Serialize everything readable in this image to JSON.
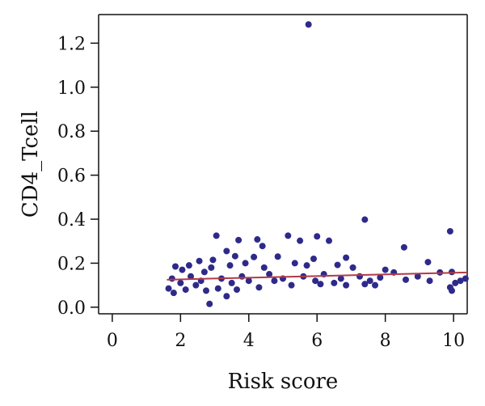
{
  "chart_data": {
    "type": "scatter",
    "xlabel": "Risk score",
    "ylabel": "CD4_Tcell",
    "xlim": [
      -0.4,
      10.4
    ],
    "ylim": [
      -0.03,
      1.33
    ],
    "xticks": [
      0,
      2,
      4,
      6,
      8,
      10
    ],
    "yticks": [
      0.0,
      0.2,
      0.4,
      0.6,
      0.8,
      1.0,
      1.2
    ],
    "ytick_labels": [
      "0.0",
      "0.2",
      "0.4",
      "0.6",
      "0.8",
      "1.0",
      "1.2"
    ],
    "grid": false,
    "legend": "none",
    "point_color": "#2e2a8a",
    "fit_line_color": "#b23a48",
    "fit_line": {
      "x": [
        1.6,
        10.4
      ],
      "y": [
        0.125,
        0.158
      ]
    },
    "points": [
      [
        5.75,
        1.285
      ],
      [
        7.4,
        0.398
      ],
      [
        9.9,
        0.345
      ],
      [
        3.05,
        0.325
      ],
      [
        5.15,
        0.325
      ],
      [
        6.0,
        0.322
      ],
      [
        4.25,
        0.308
      ],
      [
        3.7,
        0.305
      ],
      [
        6.35,
        0.302
      ],
      [
        5.5,
        0.302
      ],
      [
        8.55,
        0.272
      ],
      [
        4.4,
        0.278
      ],
      [
        3.35,
        0.255
      ],
      [
        3.6,
        0.232
      ],
      [
        4.85,
        0.23
      ],
      [
        6.85,
        0.225
      ],
      [
        5.9,
        0.22
      ],
      [
        9.25,
        0.205
      ],
      [
        2.55,
        0.21
      ],
      [
        2.95,
        0.215
      ],
      [
        4.15,
        0.228
      ],
      [
        5.35,
        0.2
      ],
      [
        5.7,
        0.19
      ],
      [
        6.6,
        0.192
      ],
      [
        7.05,
        0.18
      ],
      [
        8.0,
        0.17
      ],
      [
        8.25,
        0.158
      ],
      [
        9.6,
        0.158
      ],
      [
        9.95,
        0.16
      ],
      [
        10.35,
        0.13
      ],
      [
        10.05,
        0.11
      ],
      [
        10.2,
        0.12
      ],
      [
        9.9,
        0.09
      ],
      [
        9.95,
        0.075
      ],
      [
        7.55,
        0.12
      ],
      [
        7.7,
        0.1
      ],
      [
        7.4,
        0.105
      ],
      [
        6.85,
        0.1
      ],
      [
        6.1,
        0.105
      ],
      [
        6.5,
        0.11
      ],
      [
        2.85,
        0.015
      ],
      [
        3.35,
        0.05
      ],
      [
        1.65,
        0.085
      ],
      [
        1.8,
        0.065
      ],
      [
        1.85,
        0.185
      ],
      [
        2.05,
        0.17
      ],
      [
        2.3,
        0.14
      ],
      [
        2.6,
        0.12
      ],
      [
        2.0,
        0.11
      ],
      [
        2.45,
        0.1
      ],
      [
        2.7,
        0.16
      ],
      [
        3.2,
        0.13
      ],
      [
        3.5,
        0.11
      ],
      [
        3.8,
        0.14
      ],
      [
        4.0,
        0.12
      ],
      [
        4.6,
        0.15
      ],
      [
        5.0,
        0.13
      ],
      [
        5.6,
        0.14
      ],
      [
        6.2,
        0.15
      ],
      [
        1.75,
        0.13
      ],
      [
        2.25,
        0.19
      ],
      [
        2.9,
        0.18
      ],
      [
        3.45,
        0.19
      ],
      [
        3.9,
        0.2
      ],
      [
        4.45,
        0.18
      ],
      [
        4.75,
        0.12
      ],
      [
        2.15,
        0.08
      ],
      [
        2.75,
        0.075
      ],
      [
        3.1,
        0.085
      ],
      [
        3.65,
        0.08
      ],
      [
        4.3,
        0.09
      ],
      [
        5.25,
        0.1
      ],
      [
        5.95,
        0.12
      ],
      [
        6.7,
        0.13
      ],
      [
        7.25,
        0.14
      ],
      [
        7.85,
        0.135
      ],
      [
        8.6,
        0.125
      ],
      [
        8.95,
        0.14
      ],
      [
        9.3,
        0.12
      ]
    ]
  }
}
